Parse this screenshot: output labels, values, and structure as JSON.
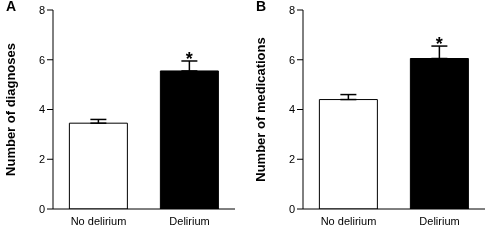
{
  "chart_data": [
    {
      "type": "bar",
      "title": "A",
      "y_label": "Number of diagnoses",
      "categories": [
        "No delirium",
        "Delirium"
      ],
      "values": [
        3.45,
        5.55
      ],
      "errors": [
        0.15,
        0.4
      ],
      "colors": [
        "#ffffff",
        "#000000"
      ],
      "ylim": [
        0,
        8
      ],
      "yticks": [
        0,
        2,
        4,
        6,
        8
      ],
      "annotations": [
        {
          "category": "Delirium",
          "text": "*"
        }
      ]
    },
    {
      "type": "bar",
      "title": "B",
      "y_label": "Number of medications",
      "categories": [
        "No delirium",
        "Delirium"
      ],
      "values": [
        4.4,
        6.05
      ],
      "errors": [
        0.2,
        0.5
      ],
      "colors": [
        "#ffffff",
        "#000000"
      ],
      "ylim": [
        0,
        8
      ],
      "yticks": [
        0,
        2,
        4,
        6,
        8
      ],
      "annotations": [
        {
          "category": "Delirium",
          "text": "*"
        }
      ]
    }
  ]
}
